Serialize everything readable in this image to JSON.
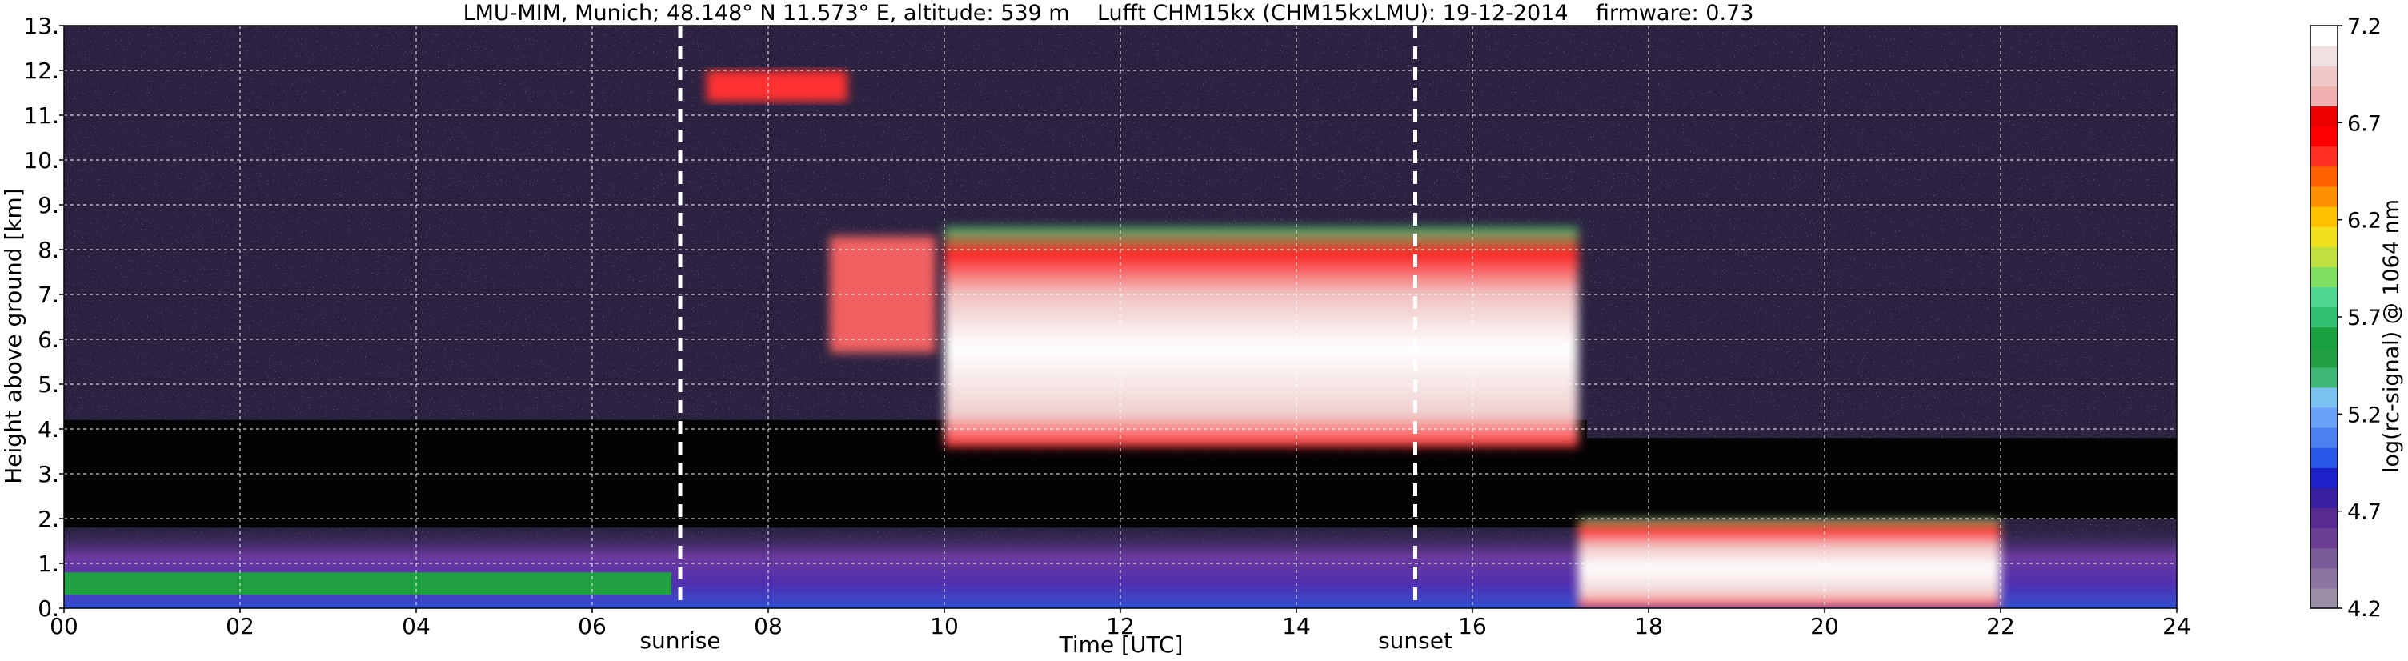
{
  "chart_data": {
    "type": "heatmap",
    "title": "LMU-MIM, Munich; 48.148° N 11.573° E, altitude: 539 m    Lufft CHM15kx (CHM15kxLMU): 19-12-2014    firmware: 0.73",
    "xlabel": "Time [UTC]",
    "ylabel": "Height above ground [km]",
    "xlim": [
      0,
      24
    ],
    "ylim": [
      0,
      13
    ],
    "x_ticks": [
      "00",
      "02",
      "04",
      "06",
      "08",
      "10",
      "12",
      "14",
      "16",
      "18",
      "20",
      "22",
      "24"
    ],
    "y_ticks": [
      "0.",
      "1.",
      "2.",
      "3.",
      "4.",
      "5.",
      "6.",
      "7.",
      "8.",
      "9.",
      "10.",
      "11.",
      "12.",
      "13."
    ],
    "grid": true,
    "markers": [
      {
        "label": "sunrise",
        "time": 7.0
      },
      {
        "label": "sunset",
        "time": 15.35
      }
    ],
    "colorbar": {
      "label": "log(rc-signal) @ 1064 nm",
      "range": [
        4.2,
        7.2
      ],
      "ticks": [
        "4.2",
        "4.7",
        "5.2",
        "5.7",
        "6.2",
        "6.7",
        "7.2"
      ],
      "colors": [
        "#9a8fa6",
        "#8a76a0",
        "#7a5a98",
        "#6c3f93",
        "#5a2a90",
        "#3a20a0",
        "#2020c8",
        "#2858e8",
        "#4a80f0",
        "#6aa0f8",
        "#7ac0f0",
        "#40b878",
        "#20a040",
        "#18a040",
        "#30c070",
        "#50d890",
        "#80e060",
        "#c0e040",
        "#f0e020",
        "#ffc000",
        "#ff9000",
        "#ff6000",
        "#ff3020",
        "#ff0000",
        "#ee0000",
        "#f0b0b0",
        "#f0c8c8",
        "#f0e0e0",
        "#ffffff"
      ]
    },
    "layers": [
      {
        "kind": "noise-background",
        "from": 0,
        "to": 24,
        "bottom_km": 0,
        "top_km": 13
      },
      {
        "kind": "clear-sky-low-noise",
        "from": 0,
        "to": 17.3,
        "bottom_km": 1.8,
        "top_km": 4.2
      },
      {
        "kind": "clear-sky-low-noise",
        "from": 17.3,
        "to": 24,
        "bottom_km": 2.0,
        "top_km": 3.8
      },
      {
        "kind": "boundary-layer",
        "from": 0,
        "to": 24,
        "bottom_km": 0,
        "top_km": 1.8
      },
      {
        "kind": "low-cloud-green",
        "from": 0,
        "to": 6.9,
        "bottom_km": 0.3,
        "top_km": 0.8
      },
      {
        "kind": "cloud",
        "from": 10.0,
        "to": 17.2,
        "bottom_km": 3.6,
        "top_km": 8.5
      },
      {
        "kind": "cloud",
        "from": 17.2,
        "to": 22.0,
        "bottom_km": 0,
        "top_km": 2.0
      },
      {
        "kind": "cirrus",
        "from": 7.3,
        "to": 8.9,
        "bottom_km": 11.3,
        "top_km": 12.0
      },
      {
        "kind": "cirrus-patch",
        "from": 8.7,
        "to": 9.9,
        "bottom_km": 5.7,
        "top_km": 8.3
      }
    ]
  }
}
